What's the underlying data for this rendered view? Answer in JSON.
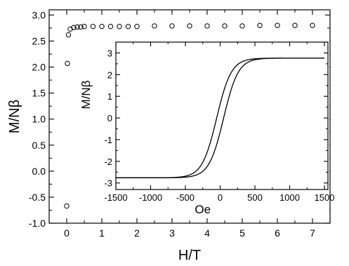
{
  "chart_data": [
    {
      "type": "scatter",
      "xlabel": "H/T",
      "ylabel": "M/Nβ",
      "xlim": [
        -0.5,
        7.5
      ],
      "ylim": [
        -1.0,
        3.1
      ],
      "x_ticks": [
        0,
        1,
        2,
        3,
        4,
        5,
        6,
        7
      ],
      "x_tick_labels": [
        "0",
        "1",
        "2",
        "3",
        "4",
        "5",
        "6",
        "7"
      ],
      "y_ticks": [
        -1.0,
        -0.5,
        0.0,
        0.5,
        1.0,
        1.5,
        2.0,
        2.5,
        3.0
      ],
      "y_tick_labels": [
        "-1.0",
        "-0.5",
        "0.0",
        "0.5",
        "1.0",
        "1.5",
        "2.0",
        "2.5",
        "3.0"
      ],
      "grid": false,
      "marker": "open-circle",
      "series": [
        {
          "points": [
            [
              0.0,
              -0.67
            ],
            [
              0.02,
              2.07
            ],
            [
              0.05,
              2.62
            ],
            [
              0.1,
              2.73
            ],
            [
              0.2,
              2.76
            ],
            [
              0.3,
              2.77
            ],
            [
              0.4,
              2.77
            ],
            [
              0.5,
              2.78
            ],
            [
              0.75,
              2.78
            ],
            [
              1.0,
              2.78
            ],
            [
              1.25,
              2.78
            ],
            [
              1.5,
              2.78
            ],
            [
              1.75,
              2.78
            ],
            [
              2.0,
              2.78
            ],
            [
              2.5,
              2.79
            ],
            [
              3.0,
              2.79
            ],
            [
              3.5,
              2.79
            ],
            [
              4.0,
              2.79
            ],
            [
              4.5,
              2.79
            ],
            [
              5.0,
              2.79
            ],
            [
              5.5,
              2.8
            ],
            [
              6.0,
              2.8
            ],
            [
              6.5,
              2.8
            ],
            [
              7.0,
              2.8
            ]
          ]
        }
      ]
    },
    {
      "type": "line",
      "inset": true,
      "xlabel": "Oe",
      "ylabel": "M/Nβ",
      "xlim": [
        -1500,
        1550
      ],
      "ylim": [
        -3.3,
        3.5
      ],
      "x_ticks": [
        -1500,
        -1000,
        -500,
        0,
        500,
        1000,
        1500
      ],
      "x_tick_labels": [
        "-1500",
        "-1000",
        "-500",
        "0",
        "500",
        "1000",
        "1500"
      ],
      "y_ticks": [
        -3,
        -2,
        -1,
        0,
        1,
        2,
        3
      ],
      "y_tick_labels": [
        "-3",
        "-2",
        "-1",
        "0",
        "1",
        "2",
        "3"
      ],
      "grid": false,
      "hysteresis": {
        "saturation": 2.76,
        "coercive_field": 50,
        "width_scale": 210
      }
    }
  ]
}
